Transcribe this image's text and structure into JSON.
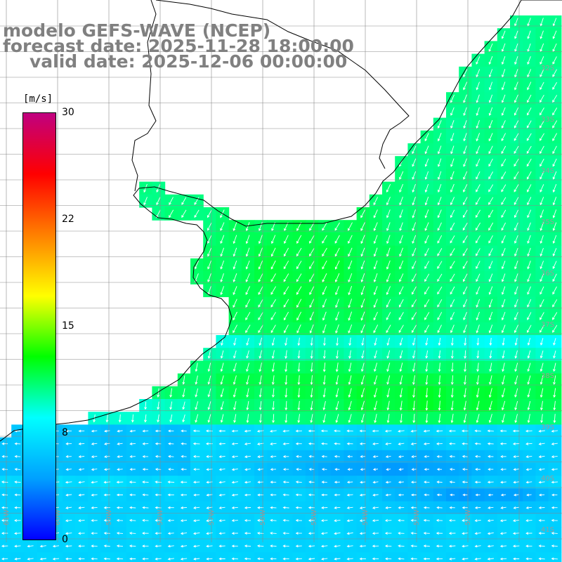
{
  "title": {
    "line1": "modelo GEFS-WAVE (NCEP)",
    "line2": "forecast date: 2025-11-28 18:00:00",
    "line3": "valid date: 2025-12-06 00:00:00"
  },
  "colorbar": {
    "unit": "[m/s]",
    "ticks": [
      "30",
      "22",
      "15",
      "8",
      "0"
    ],
    "tick_values": [
      30,
      22,
      15,
      8,
      0
    ],
    "min": 0,
    "max": 30,
    "colors": [
      "#0000ff",
      "#00a0ff",
      "#00ffff",
      "#00ff00",
      "#ffff00",
      "#ff8000",
      "#ff0000",
      "#c00080"
    ]
  },
  "map": {
    "variable": "wind speed",
    "lat_labels": [
      "32S",
      "33S",
      "34S",
      "35S",
      "36S",
      "37S",
      "38S",
      "39S",
      "40S",
      "41S"
    ],
    "lon_labels": [
      "61W",
      "60W",
      "59W",
      "58W",
      "57W",
      "56W",
      "55W",
      "54W",
      "53W",
      "52W"
    ],
    "land_color": "#ffffff",
    "arrow_color": "#ffffff"
  }
}
